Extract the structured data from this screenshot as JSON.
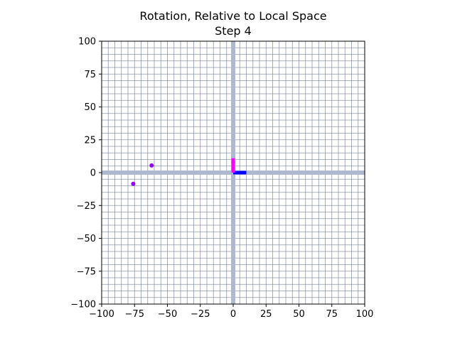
{
  "chart_data": {
    "type": "scatter",
    "title": "Rotation, Relative to Local Space",
    "subtitle": "Step 4",
    "xlabel": "",
    "ylabel": "",
    "xlim": [
      -100,
      100
    ],
    "ylim": [
      -100,
      100
    ],
    "xticks": [
      -100,
      -75,
      -50,
      -25,
      0,
      25,
      50,
      75,
      100
    ],
    "yticks": [
      -100,
      -75,
      -50,
      -25,
      0,
      25,
      50,
      75,
      100
    ],
    "xtick_labels": [
      "−100",
      "−75",
      "−50",
      "−25",
      "0",
      "25",
      "50",
      "75",
      "100"
    ],
    "ytick_labels": [
      "−100",
      "−75",
      "−50",
      "−25",
      "0",
      "25",
      "50",
      "75",
      "100"
    ],
    "grid": true,
    "grid_step": 5,
    "grid_color": "#7d879e",
    "axis_line_color": "#b0b8d0",
    "points": [
      {
        "x": -62,
        "y": 5.5,
        "color": "#9900ff"
      },
      {
        "x": -76,
        "y": -8.5,
        "color": "#9900ff"
      }
    ],
    "local_axes": {
      "origin": [
        0,
        0
      ],
      "x_axis": {
        "end": [
          10,
          0
        ],
        "color": "#0000ff"
      },
      "y_axis": {
        "end": [
          0,
          11
        ],
        "color": "#ff00ff"
      }
    }
  }
}
